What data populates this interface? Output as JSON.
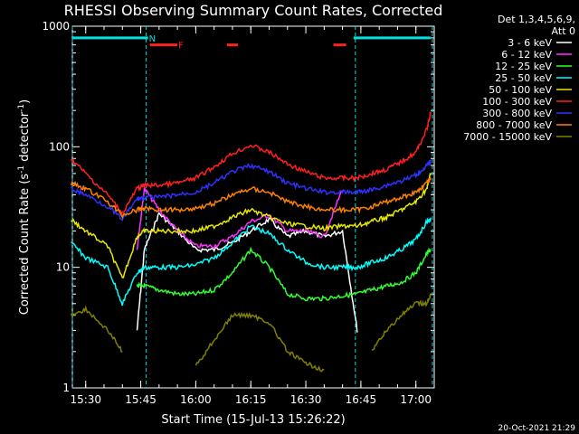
{
  "chart_data": {
    "type": "line",
    "title": "RHESSI Observing Summary Count Rates, Corrected",
    "xlabel": "Start Time (15-Jul-13 15:26:22)",
    "ylabel_main": "Corrected Count Rate (s",
    "ylabel_sup1": "-1",
    "ylabel_mid": " detector",
    "ylabel_sup2": "-1",
    "ylabel_end": ")",
    "yscale": "log",
    "ylim": [
      1,
      1000
    ],
    "y_ticks": [
      {
        "value": 1,
        "label": "1"
      },
      {
        "value": 10,
        "label": "10"
      },
      {
        "value": 100,
        "label": "100"
      },
      {
        "value": 1000,
        "label": "1000"
      }
    ],
    "xlim": [
      "15:26:22",
      "17:05:00"
    ],
    "x_ticks": [
      {
        "value": "15:30",
        "label": "15:30"
      },
      {
        "value": "15:45",
        "label": "15:45"
      },
      {
        "value": "16:00",
        "label": "16:00"
      },
      {
        "value": "16:15",
        "label": "16:15"
      },
      {
        "value": "16:30",
        "label": "16:30"
      },
      {
        "value": "16:45",
        "label": "16:45"
      },
      {
        "value": "17:00",
        "label": "17:00"
      }
    ],
    "legend_header": [
      "Det 1,3,4,5,6,9,",
      "Att 0"
    ],
    "legend_placement": "right",
    "footer_date": "20-Oct-2021 21:29",
    "flags": [
      {
        "label": "N",
        "color": "#00e0e0",
        "start": "15:26:22",
        "end": "15:47:00",
        "level": 800
      },
      {
        "label": "",
        "color": "#00e0e0",
        "start": "16:43:00",
        "end": "17:04:00",
        "level": 800
      },
      {
        "label": "F",
        "color": "#ff2020",
        "start": "15:47:30",
        "end": "15:55:00",
        "level": 700
      },
      {
        "label": "",
        "color": "#ff2020",
        "start": "16:08:30",
        "end": "16:11:30",
        "level": 700
      },
      {
        "label": "",
        "color": "#ff2020",
        "start": "16:37:30",
        "end": "16:41:00",
        "level": 700
      }
    ],
    "night_boundaries": [
      "15:26:22",
      "15:46:30",
      "16:43:30",
      "17:04:30"
    ],
    "times": [
      "15:26",
      "15:30",
      "15:36",
      "15:40",
      "15:44",
      "15:46",
      "15:50",
      "15:55",
      "16:00",
      "16:05",
      "16:10",
      "16:15",
      "16:20",
      "16:25",
      "16:30",
      "16:35",
      "16:40",
      "16:44",
      "16:48",
      "16:52",
      "16:56",
      "17:00",
      "17:03",
      "17:04"
    ],
    "series": [
      {
        "name": "3 - 6 keV",
        "color": "#ffffff",
        "values": [
          null,
          null,
          null,
          null,
          3,
          14,
          28,
          20,
          14,
          14,
          16,
          20,
          25,
          18,
          20,
          18,
          20,
          3,
          null,
          null,
          null,
          null,
          null,
          null
        ]
      },
      {
        "name": "6 - 12 keV",
        "color": "#ff30ff",
        "values": [
          null,
          null,
          null,
          null,
          14,
          45,
          30,
          20,
          15,
          15,
          18,
          24,
          27,
          20,
          20,
          18,
          45,
          null,
          null,
          null,
          null,
          null,
          null,
          null
        ]
      },
      {
        "name": "12 - 25 keV",
        "color": "#30ff30",
        "values": [
          null,
          null,
          null,
          null,
          7,
          7,
          6.5,
          6,
          6,
          6.5,
          9,
          14,
          10,
          6,
          5.5,
          5.5,
          5.8,
          6,
          6.5,
          7,
          7.5,
          9,
          13,
          14
        ]
      },
      {
        "name": "25 - 50 keV",
        "color": "#00ffff",
        "values": [
          16,
          12,
          10,
          5,
          9,
          10,
          10,
          10,
          10.5,
          12,
          16,
          22,
          19,
          14,
          11,
          10,
          10,
          10,
          11,
          12,
          14,
          17,
          24,
          25
        ]
      },
      {
        "name": "50 - 100 keV",
        "color": "#e8e800",
        "values": [
          25,
          20,
          15,
          8,
          18,
          20,
          20,
          20,
          20,
          22,
          26,
          30,
          26,
          23,
          22,
          21,
          22,
          22,
          24,
          26,
          30,
          35,
          45,
          60
        ]
      },
      {
        "name": "100 - 300 keV",
        "color": "#ff2020",
        "values": [
          80,
          60,
          40,
          28,
          45,
          48,
          48,
          50,
          55,
          68,
          88,
          103,
          90,
          72,
          62,
          55,
          55,
          55,
          60,
          65,
          75,
          90,
          140,
          190
        ]
      },
      {
        "name": "300 - 800 keV",
        "color": "#3030ff",
        "values": [
          45,
          40,
          32,
          25,
          37,
          38,
          38,
          40,
          42,
          50,
          62,
          70,
          62,
          50,
          45,
          42,
          42,
          42,
          44,
          48,
          52,
          58,
          70,
          75
        ]
      },
      {
        "name": "800 - 7000 keV",
        "color": "#ff8000",
        "values": [
          50,
          45,
          35,
          27,
          30,
          31,
          30,
          30,
          31,
          34,
          40,
          45,
          42,
          35,
          32,
          30,
          30,
          30,
          32,
          35,
          38,
          42,
          50,
          55
        ]
      },
      {
        "name": "7000 - 15000 keV",
        "color": "#808000",
        "values": [
          4,
          4.5,
          3,
          2,
          null,
          null,
          null,
          null,
          1.5,
          2.5,
          4,
          4,
          3.5,
          2,
          1.6,
          1.4,
          null,
          null,
          2,
          3,
          4,
          5,
          5,
          6
        ]
      }
    ]
  }
}
